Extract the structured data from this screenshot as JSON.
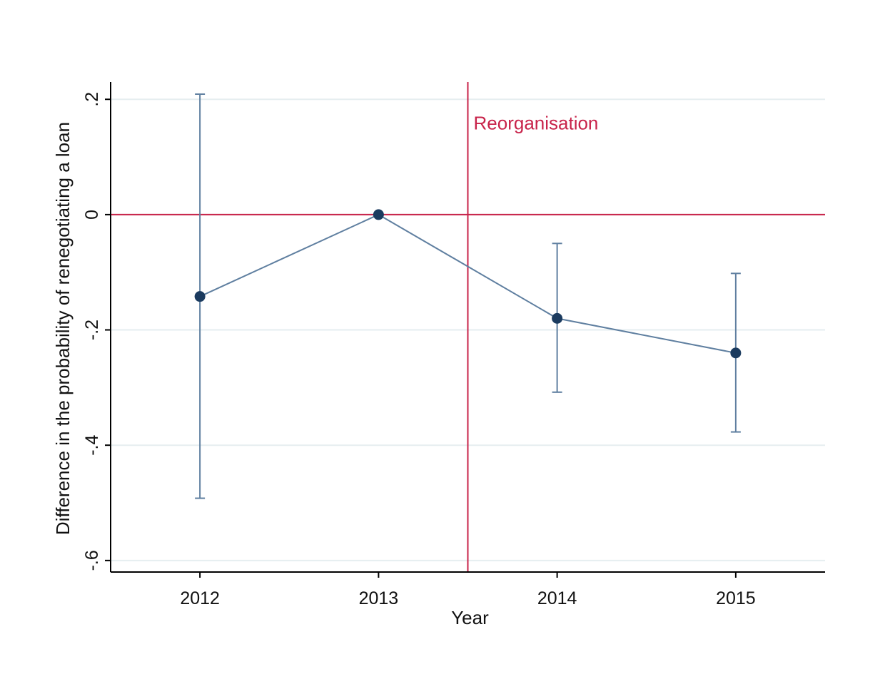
{
  "chart_data": {
    "type": "scatter",
    "title": "",
    "xlabel": "Year",
    "ylabel": "Difference in the probability of renegotiating a loan",
    "x": [
      2012,
      2013,
      2014,
      2015
    ],
    "x_tick_labels": [
      "2012",
      "2013",
      "2014",
      "2015"
    ],
    "xlim": [
      2011.5,
      2015.5
    ],
    "ylim": [
      -0.62,
      0.23
    ],
    "y_ticks": [
      0.2,
      0,
      -0.2,
      -0.4,
      -0.6
    ],
    "y_tick_labels": [
      ".2",
      "0",
      "-.2",
      "-.4",
      "-.6"
    ],
    "grid": true,
    "series": [
      {
        "values": [
          -0.142,
          0.0,
          -0.18,
          -0.24
        ],
        "ci_lower": [
          -0.492,
          0.0,
          -0.308,
          -0.377
        ],
        "ci_upper": [
          0.209,
          0.0,
          -0.05,
          -0.102
        ],
        "color": "#1b3b5f",
        "line_color": "#5f7fa0"
      }
    ],
    "reference_lines": {
      "horizontal_y": 0,
      "vertical_x": 2013.5,
      "color": "#c8234a"
    },
    "annotation": {
      "text": "Reorganisation",
      "x": 2013.5,
      "y": 0.16
    }
  }
}
